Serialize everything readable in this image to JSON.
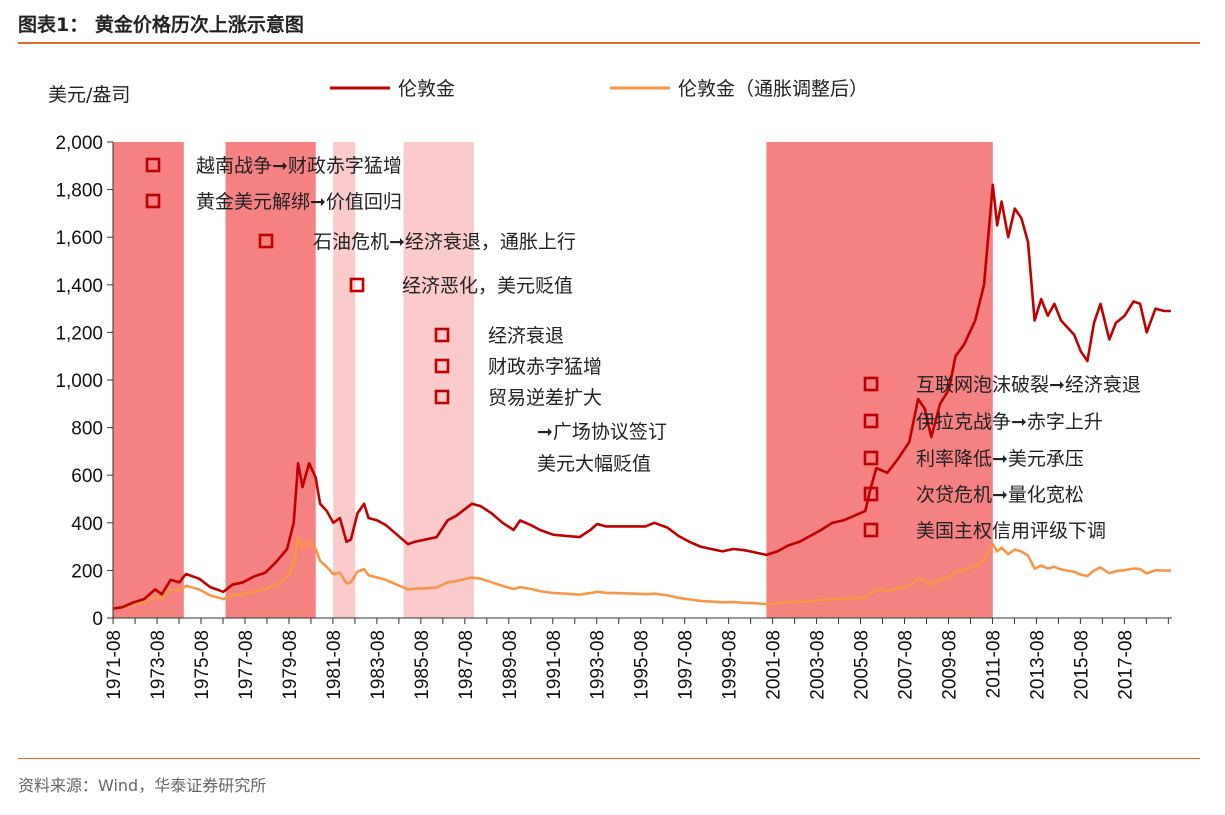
{
  "figure": {
    "title": "图表1：  黄金价格历次上涨示意图",
    "source": "资料来源：Wind，华泰证券研究所"
  },
  "colors": {
    "accent_rule": "#e36c2a",
    "series_nominal": "#c00000",
    "series_adjusted": "#f79646",
    "shade_strong": "#f36b6b",
    "shade_light": "#f9b8b8",
    "marker": "#c00000"
  },
  "chart_data": {
    "type": "line",
    "ylabel": "美元/盎司",
    "ylim": [
      0,
      2000
    ],
    "yticks": [
      0,
      200,
      400,
      600,
      800,
      1000,
      1200,
      1400,
      1600,
      1800,
      2000
    ],
    "ytick_labels": [
      "0",
      "200",
      "400",
      "600",
      "800",
      "1,000",
      "1,200",
      "1,400",
      "1,600",
      "1,800",
      "2,000"
    ],
    "xlim": [
      1971.58,
      2019.75
    ],
    "xtick_labels": [
      "1971-08",
      "1973-08",
      "1975-08",
      "1977-08",
      "1979-08",
      "1981-08",
      "1983-08",
      "1985-08",
      "1987-08",
      "1989-08",
      "1991-08",
      "1993-08",
      "1995-08",
      "1997-08",
      "1999-08",
      "2001-08",
      "2003-08",
      "2005-08",
      "2007-08",
      "2009-08",
      "2011-08",
      "2013-08",
      "2015-08",
      "2017-08"
    ],
    "legend": [
      {
        "name": "伦敦金",
        "color": "#c00000"
      },
      {
        "name": "伦敦金（通胀调整后）",
        "color": "#f79646"
      }
    ],
    "shaded_periods": [
      {
        "start": 1971.6,
        "end": 1974.8,
        "style": "strong"
      },
      {
        "start": 1976.7,
        "end": 1980.8,
        "style": "strong"
      },
      {
        "start": 1981.6,
        "end": 1982.6,
        "style": "light"
      },
      {
        "start": 1984.8,
        "end": 1988.0,
        "style": "light"
      },
      {
        "start": 2001.3,
        "end": 2011.6,
        "style": "strong"
      }
    ],
    "series": [
      {
        "name": "伦敦金",
        "points": [
          [
            1971.6,
            40
          ],
          [
            1972.0,
            45
          ],
          [
            1972.5,
            65
          ],
          [
            1973.0,
            80
          ],
          [
            1973.5,
            120
          ],
          [
            1973.8,
            100
          ],
          [
            1974.2,
            160
          ],
          [
            1974.6,
            150
          ],
          [
            1974.9,
            185
          ],
          [
            1975.5,
            165
          ],
          [
            1976.0,
            130
          ],
          [
            1976.6,
            110
          ],
          [
            1977.0,
            140
          ],
          [
            1977.5,
            150
          ],
          [
            1978.0,
            175
          ],
          [
            1978.5,
            190
          ],
          [
            1979.0,
            235
          ],
          [
            1979.5,
            290
          ],
          [
            1979.8,
            400
          ],
          [
            1980.0,
            650
          ],
          [
            1980.2,
            550
          ],
          [
            1980.5,
            650
          ],
          [
            1980.8,
            590
          ],
          [
            1981.0,
            480
          ],
          [
            1981.3,
            450
          ],
          [
            1981.6,
            400
          ],
          [
            1981.9,
            420
          ],
          [
            1982.2,
            320
          ],
          [
            1982.4,
            330
          ],
          [
            1982.7,
            440
          ],
          [
            1983.0,
            480
          ],
          [
            1983.2,
            420
          ],
          [
            1983.6,
            410
          ],
          [
            1984.0,
            390
          ],
          [
            1984.5,
            350
          ],
          [
            1985.0,
            310
          ],
          [
            1985.3,
            320
          ],
          [
            1985.8,
            330
          ],
          [
            1986.3,
            340
          ],
          [
            1986.8,
            410
          ],
          [
            1987.2,
            430
          ],
          [
            1987.9,
            480
          ],
          [
            1988.3,
            470
          ],
          [
            1988.8,
            440
          ],
          [
            1989.3,
            400
          ],
          [
            1989.8,
            370
          ],
          [
            1990.1,
            410
          ],
          [
            1990.6,
            390
          ],
          [
            1991.0,
            370
          ],
          [
            1991.6,
            350
          ],
          [
            1992.2,
            345
          ],
          [
            1992.8,
            340
          ],
          [
            1993.3,
            370
          ],
          [
            1993.6,
            395
          ],
          [
            1994.0,
            385
          ],
          [
            1994.6,
            385
          ],
          [
            1995.3,
            385
          ],
          [
            1995.8,
            385
          ],
          [
            1996.2,
            400
          ],
          [
            1996.8,
            380
          ],
          [
            1997.3,
            345
          ],
          [
            1997.8,
            320
          ],
          [
            1998.3,
            300
          ],
          [
            1998.8,
            290
          ],
          [
            1999.3,
            280
          ],
          [
            1999.8,
            290
          ],
          [
            2000.3,
            285
          ],
          [
            2000.8,
            275
          ],
          [
            2001.3,
            265
          ],
          [
            2001.8,
            280
          ],
          [
            2002.3,
            305
          ],
          [
            2002.8,
            320
          ],
          [
            2003.3,
            345
          ],
          [
            2003.8,
            370
          ],
          [
            2004.3,
            400
          ],
          [
            2004.8,
            410
          ],
          [
            2005.3,
            430
          ],
          [
            2005.8,
            450
          ],
          [
            2006.0,
            530
          ],
          [
            2006.3,
            630
          ],
          [
            2006.8,
            610
          ],
          [
            2007.3,
            670
          ],
          [
            2007.8,
            740
          ],
          [
            2008.2,
            920
          ],
          [
            2008.5,
            880
          ],
          [
            2008.8,
            760
          ],
          [
            2009.2,
            900
          ],
          [
            2009.6,
            960
          ],
          [
            2009.9,
            1100
          ],
          [
            2010.3,
            1150
          ],
          [
            2010.8,
            1250
          ],
          [
            2011.2,
            1400
          ],
          [
            2011.6,
            1820
          ],
          [
            2011.8,
            1650
          ],
          [
            2012.0,
            1750
          ],
          [
            2012.3,
            1600
          ],
          [
            2012.6,
            1720
          ],
          [
            2012.9,
            1680
          ],
          [
            2013.2,
            1580
          ],
          [
            2013.5,
            1250
          ],
          [
            2013.8,
            1340
          ],
          [
            2014.1,
            1270
          ],
          [
            2014.4,
            1320
          ],
          [
            2014.7,
            1250
          ],
          [
            2015.0,
            1220
          ],
          [
            2015.3,
            1190
          ],
          [
            2015.6,
            1120
          ],
          [
            2015.9,
            1080
          ],
          [
            2016.2,
            1240
          ],
          [
            2016.5,
            1320
          ],
          [
            2016.9,
            1170
          ],
          [
            2017.2,
            1240
          ],
          [
            2017.6,
            1270
          ],
          [
            2018.0,
            1330
          ],
          [
            2018.3,
            1320
          ],
          [
            2018.6,
            1200
          ],
          [
            2019.0,
            1300
          ],
          [
            2019.4,
            1290
          ],
          [
            2019.7,
            1290
          ]
        ]
      },
      {
        "name": "伦敦金（通胀调整后）",
        "points": [
          [
            1971.6,
            38
          ],
          [
            1972.0,
            42
          ],
          [
            1972.5,
            55
          ],
          [
            1973.0,
            65
          ],
          [
            1973.5,
            90
          ],
          [
            1973.8,
            80
          ],
          [
            1974.2,
            120
          ],
          [
            1974.6,
            115
          ],
          [
            1974.9,
            135
          ],
          [
            1975.5,
            120
          ],
          [
            1976.0,
            95
          ],
          [
            1976.6,
            80
          ],
          [
            1977.0,
            95
          ],
          [
            1977.5,
            100
          ],
          [
            1978.0,
            110
          ],
          [
            1978.5,
            120
          ],
          [
            1979.0,
            140
          ],
          [
            1979.5,
            170
          ],
          [
            1979.8,
            230
          ],
          [
            1980.0,
            340
          ],
          [
            1980.2,
            290
          ],
          [
            1980.5,
            320
          ],
          [
            1980.8,
            290
          ],
          [
            1981.0,
            240
          ],
          [
            1981.3,
            215
          ],
          [
            1981.6,
            185
          ],
          [
            1981.9,
            190
          ],
          [
            1982.2,
            145
          ],
          [
            1982.4,
            150
          ],
          [
            1982.7,
            195
          ],
          [
            1983.0,
            205
          ],
          [
            1983.2,
            180
          ],
          [
            1983.6,
            170
          ],
          [
            1984.0,
            160
          ],
          [
            1984.5,
            140
          ],
          [
            1985.0,
            120
          ],
          [
            1985.3,
            123
          ],
          [
            1985.8,
            125
          ],
          [
            1986.3,
            128
          ],
          [
            1986.8,
            150
          ],
          [
            1987.2,
            155
          ],
          [
            1987.9,
            170
          ],
          [
            1988.3,
            165
          ],
          [
            1988.8,
            150
          ],
          [
            1989.3,
            135
          ],
          [
            1989.8,
            122
          ],
          [
            1990.1,
            130
          ],
          [
            1990.6,
            122
          ],
          [
            1991.0,
            113
          ],
          [
            1991.6,
            105
          ],
          [
            1992.2,
            102
          ],
          [
            1992.8,
            98
          ],
          [
            1993.3,
            105
          ],
          [
            1993.6,
            110
          ],
          [
            1994.0,
            106
          ],
          [
            1994.6,
            104
          ],
          [
            1995.3,
            102
          ],
          [
            1995.8,
            100
          ],
          [
            1996.2,
            102
          ],
          [
            1996.8,
            95
          ],
          [
            1997.3,
            85
          ],
          [
            1997.8,
            78
          ],
          [
            1998.3,
            72
          ],
          [
            1998.8,
            69
          ],
          [
            1999.3,
            66
          ],
          [
            1999.8,
            67
          ],
          [
            2000.3,
            64
          ],
          [
            2000.8,
            62
          ],
          [
            2001.3,
            58
          ],
          [
            2001.8,
            62
          ],
          [
            2002.3,
            66
          ],
          [
            2002.8,
            68
          ],
          [
            2003.3,
            72
          ],
          [
            2003.8,
            76
          ],
          [
            2004.3,
            80
          ],
          [
            2004.8,
            82
          ],
          [
            2005.3,
            84
          ],
          [
            2005.8,
            87
          ],
          [
            2006.0,
            100
          ],
          [
            2006.3,
            120
          ],
          [
            2006.8,
            115
          ],
          [
            2007.3,
            125
          ],
          [
            2007.8,
            135
          ],
          [
            2008.2,
            165
          ],
          [
            2008.5,
            158
          ],
          [
            2008.8,
            138
          ],
          [
            2009.2,
            162
          ],
          [
            2009.6,
            170
          ],
          [
            2009.9,
            195
          ],
          [
            2010.3,
            202
          ],
          [
            2010.8,
            218
          ],
          [
            2011.2,
            240
          ],
          [
            2011.6,
            310
          ],
          [
            2011.8,
            280
          ],
          [
            2012.0,
            295
          ],
          [
            2012.3,
            268
          ],
          [
            2012.6,
            288
          ],
          [
            2012.9,
            280
          ],
          [
            2013.2,
            262
          ],
          [
            2013.5,
            207
          ],
          [
            2013.8,
            220
          ],
          [
            2014.1,
            208
          ],
          [
            2014.4,
            215
          ],
          [
            2014.7,
            204
          ],
          [
            2015.0,
            199
          ],
          [
            2015.3,
            194
          ],
          [
            2015.6,
            182
          ],
          [
            2015.9,
            176
          ],
          [
            2016.2,
            200
          ],
          [
            2016.5,
            212
          ],
          [
            2016.9,
            188
          ],
          [
            2017.2,
            197
          ],
          [
            2017.6,
            201
          ],
          [
            2018.0,
            208
          ],
          [
            2018.3,
            206
          ],
          [
            2018.6,
            187
          ],
          [
            2019.0,
            201
          ],
          [
            2019.4,
            199
          ],
          [
            2019.7,
            199
          ]
        ]
      }
    ],
    "annotations": [
      {
        "text": "越南战争➞财政赤字猛增",
        "marker": true
      },
      {
        "text": "黄金美元解绑➞价值回归",
        "marker": true
      },
      {
        "text": "石油危机➞经济衰退，通胀上行",
        "marker": true
      },
      {
        "text": "经济恶化，美元贬值",
        "marker": true
      },
      {
        "text": "经济衰退",
        "marker": true
      },
      {
        "text": "财政赤字猛增",
        "marker": true
      },
      {
        "text": "贸易逆差扩大",
        "marker": true
      },
      {
        "text": "➞广场协议签订",
        "marker": false
      },
      {
        "text": "美元大幅贬值",
        "marker": false
      },
      {
        "text": "互联网泡沫破裂➞经济衰退",
        "marker": true
      },
      {
        "text": "伊拉克战争➞赤字上升",
        "marker": true
      },
      {
        "text": "利率降低➞美元承压",
        "marker": true
      },
      {
        "text": "次贷危机➞量化宽松",
        "marker": true
      },
      {
        "text": "美国主权信用评级下调",
        "marker": true
      }
    ]
  }
}
